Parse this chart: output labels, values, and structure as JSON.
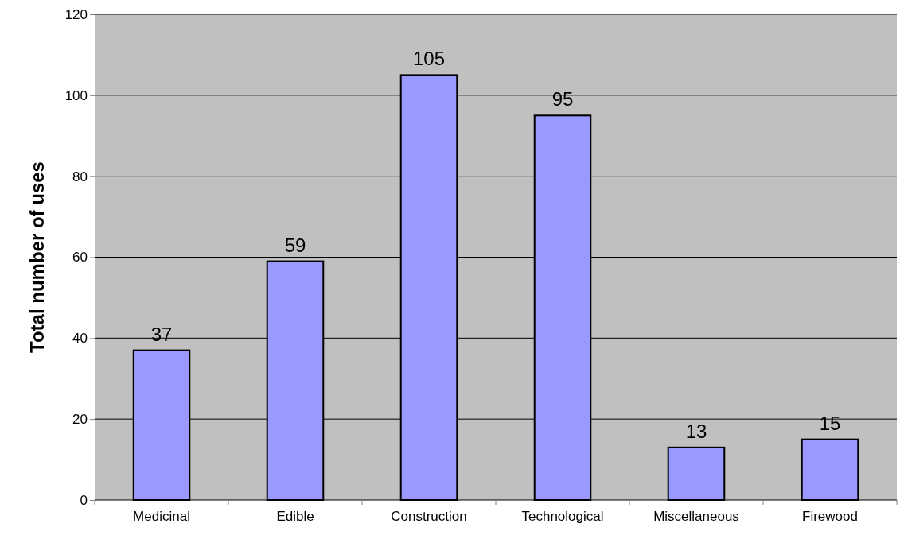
{
  "chart_data": {
    "type": "bar",
    "ylabel": "Total number of uses",
    "categories": [
      "Medicinal",
      "Edible",
      "Construction",
      "Technological",
      "Miscellaneous",
      "Firewood"
    ],
    "values": [
      37,
      59,
      105,
      95,
      13,
      15
    ],
    "color": "#9999ff",
    "ylim": [
      0,
      120
    ],
    "yticks": [
      0,
      20,
      40,
      60,
      80,
      100,
      120
    ],
    "grid": "y",
    "data_labels": true
  }
}
